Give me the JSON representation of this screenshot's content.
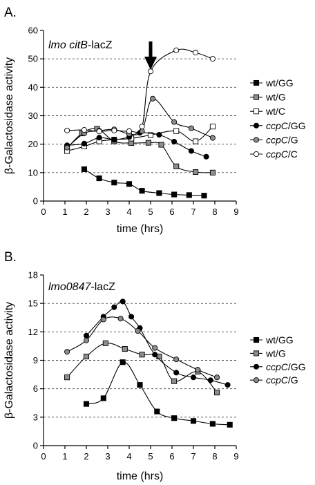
{
  "chart_data": [
    {
      "type": "line",
      "panel_label": "A.",
      "annotation": {
        "italic": "lmo citB",
        "normal": "-lacZ"
      },
      "xlabel": "time (hrs)",
      "ylabel": "β-Galactosidase activity",
      "xlim": [
        0,
        9
      ],
      "ylim": [
        0,
        60
      ],
      "xticks": [
        "0",
        "1",
        "2",
        "3",
        "4",
        "5",
        "6",
        "7",
        "8",
        "9"
      ],
      "yticks": [
        "0",
        "10",
        "20",
        "30",
        "40",
        "50",
        "60"
      ],
      "ytick_values": [
        0,
        10,
        20,
        30,
        40,
        50,
        60
      ],
      "gridlines_y": [
        10,
        20,
        30,
        40,
        50
      ],
      "grid": true,
      "legend": "right",
      "arrow_x": 5,
      "series": [
        {
          "name": "wt/GG",
          "parts": [
            {
              "t": "wt/GG",
              "i": false
            }
          ],
          "marker": "square",
          "fill": "#000000",
          "x": [
            1.9,
            2.6,
            3.3,
            4.0,
            4.6,
            5.4,
            6.1,
            6.8,
            7.5
          ],
          "y": [
            11.2,
            8.0,
            6.5,
            6.0,
            3.6,
            2.8,
            2.3,
            2.1,
            1.9
          ]
        },
        {
          "name": "wt/G",
          "parts": [
            {
              "t": "wt/G",
              "i": false
            }
          ],
          "marker": "square",
          "fill": "#8c8c8c",
          "x": [
            1.1,
            1.8,
            2.5,
            3.3,
            4.1,
            4.9,
            5.5,
            6.2,
            7.1,
            7.9
          ],
          "y": [
            18.6,
            23.8,
            25.4,
            21.0,
            20.4,
            20.5,
            19.8,
            12.2,
            10.2,
            10.0
          ]
        },
        {
          "name": "wt/C",
          "parts": [
            {
              "t": "wt/C",
              "i": false
            }
          ],
          "marker": "square",
          "fill": "#ffffff",
          "x": [
            1.1,
            1.9,
            2.6,
            3.3,
            4.1,
            5.0,
            6.2,
            7.1,
            7.9
          ],
          "y": [
            17.6,
            19.2,
            21.0,
            21.6,
            22.0,
            23.2,
            24.6,
            21.0,
            26.2
          ]
        },
        {
          "name": "ccpC/GG",
          "parts": [
            {
              "t": "ccpC",
              "i": true
            },
            {
              "t": "/GG",
              "i": false
            }
          ],
          "marker": "circle",
          "fill": "#000000",
          "x": [
            1.1,
            1.9,
            2.6,
            3.3,
            4.0,
            4.5,
            5.4,
            6.1,
            6.9,
            7.6
          ],
          "y": [
            19.6,
            20.2,
            22.3,
            21.6,
            22.5,
            24.0,
            23.3,
            20.9,
            17.6,
            15.6
          ]
        },
        {
          "name": "ccpC/G",
          "parts": [
            {
              "t": "ccpC",
              "i": true
            },
            {
              "t": "/G",
              "i": false
            }
          ],
          "marker": "circle",
          "fill": "#8c8c8c",
          "x": [
            1.1,
            1.9,
            2.6,
            3.3,
            4.0,
            4.6,
            5.1,
            6.1,
            6.9,
            7.9
          ],
          "y": [
            18.8,
            23.8,
            24.7,
            25.2,
            23.6,
            24.6,
            36.0,
            27.8,
            25.6,
            22.2
          ]
        },
        {
          "name": "ccpC/C",
          "parts": [
            {
              "t": "ccpC",
              "i": true
            },
            {
              "t": "/C",
              "i": false
            }
          ],
          "marker": "circle",
          "fill": "#ffffff",
          "x": [
            1.1,
            1.9,
            2.6,
            3.3,
            4.0,
            4.6,
            5.0,
            6.2,
            7.1,
            7.9
          ],
          "y": [
            24.8,
            25.0,
            24.5,
            24.8,
            24.6,
            26.2,
            45.6,
            53.0,
            52.2,
            50.0
          ]
        }
      ]
    },
    {
      "type": "line",
      "panel_label": "B.",
      "annotation": {
        "italic": "lmo0847",
        "normal": "-lacZ"
      },
      "xlabel": "time (hrs)",
      "ylabel": "β-Galactosidase activity",
      "xlim": [
        0,
        9
      ],
      "ylim": [
        0,
        18
      ],
      "xticks": [
        "0",
        "1",
        "2",
        "3",
        "4",
        "5",
        "6",
        "7",
        "8",
        "9"
      ],
      "yticks": [
        "0",
        "3",
        "6",
        "9",
        "12",
        "15",
        "18"
      ],
      "ytick_values": [
        0,
        3,
        6,
        9,
        12,
        15,
        18
      ],
      "gridlines_y": [
        3,
        6,
        9,
        12,
        15
      ],
      "grid": true,
      "legend": "right",
      "series": [
        {
          "name": "wt/GG",
          "parts": [
            {
              "t": "wt/GG",
              "i": false
            }
          ],
          "marker": "square",
          "fill": "#000000",
          "x": [
            2.0,
            2.8,
            3.7,
            4.5,
            5.3,
            6.1,
            7.0,
            7.9,
            8.7
          ],
          "y": [
            4.4,
            5.0,
            8.8,
            6.4,
            3.6,
            2.9,
            2.6,
            2.3,
            2.2
          ]
        },
        {
          "name": "wt/G",
          "parts": [
            {
              "t": "wt/G",
              "i": false
            }
          ],
          "marker": "square",
          "fill": "#8c8c8c",
          "x": [
            1.1,
            2.0,
            2.9,
            3.8,
            4.6,
            5.4,
            6.1,
            7.2,
            8.1
          ],
          "y": [
            7.2,
            9.4,
            10.8,
            10.2,
            9.6,
            9.4,
            6.8,
            7.8,
            5.6
          ]
        },
        {
          "name": "ccpC/GG",
          "parts": [
            {
              "t": "ccpC",
              "i": true
            },
            {
              "t": "/GG",
              "i": false
            }
          ],
          "marker": "circle",
          "fill": "#000000",
          "x": [
            2.0,
            2.8,
            3.3,
            3.7,
            4.1,
            4.5,
            5.2,
            6.2,
            7.0,
            7.8,
            8.6
          ],
          "y": [
            11.6,
            13.6,
            14.6,
            15.2,
            13.6,
            12.4,
            9.6,
            7.7,
            7.2,
            6.9,
            6.4
          ]
        },
        {
          "name": "ccpC/G",
          "parts": [
            {
              "t": "ccpC",
              "i": true
            },
            {
              "t": "/G",
              "i": false
            }
          ],
          "marker": "circle",
          "fill": "#8c8c8c",
          "x": [
            1.1,
            2.0,
            2.8,
            3.6,
            4.4,
            5.2,
            6.2,
            7.2,
            8.1
          ],
          "y": [
            9.9,
            11.1,
            13.3,
            13.4,
            12.1,
            10.3,
            9.1,
            8.0,
            7.2
          ]
        }
      ]
    }
  ]
}
